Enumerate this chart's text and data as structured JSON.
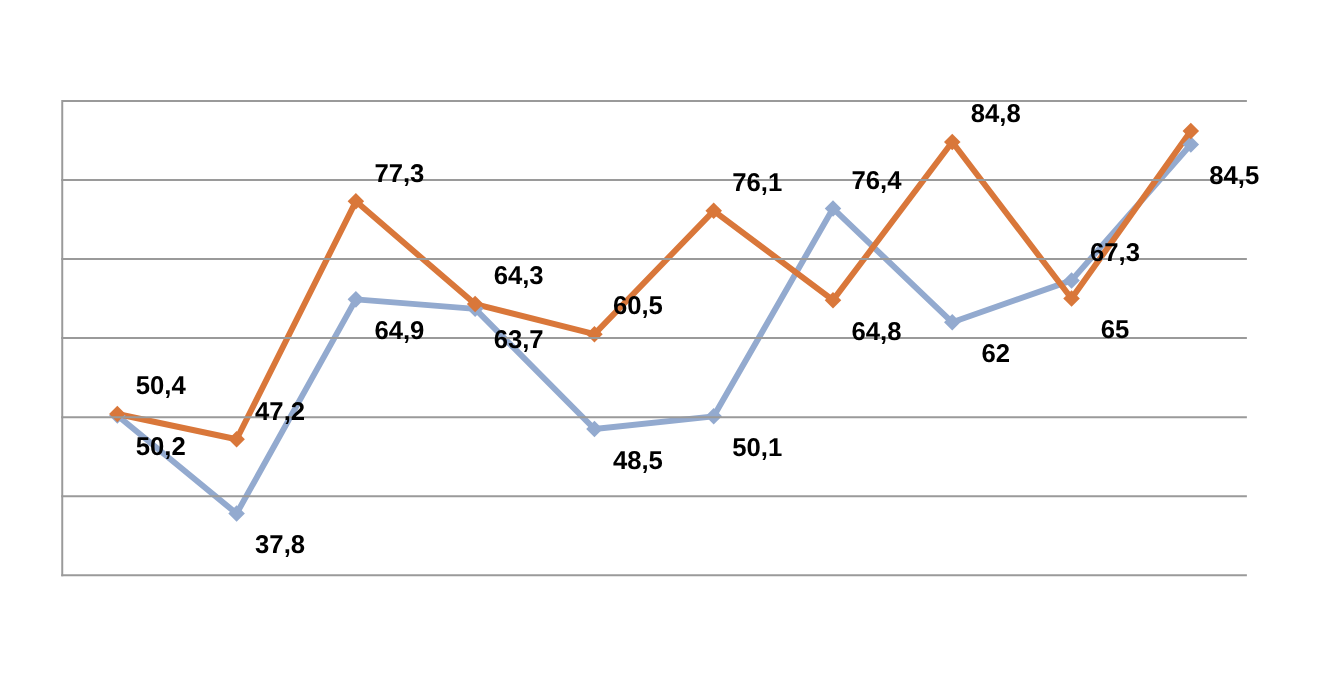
{
  "chart_data": {
    "type": "line",
    "categories": [
      null,
      null,
      null,
      null,
      null,
      null,
      null,
      null,
      null,
      null
    ],
    "series": [
      {
        "color": "#93aacf",
        "values": [
          50.2,
          37.8,
          64.9,
          63.7,
          48.5,
          50.1,
          76.4,
          62,
          67.3,
          84.5
        ],
        "value_labels": [
          "50,2",
          "37,8",
          "64,9",
          "63,7",
          "48,5",
          "50,1",
          "76,4",
          "62",
          "67,3",
          "84,5"
        ]
      },
      {
        "color": "#d9773a",
        "values": [
          50.4,
          47.2,
          77.3,
          64.3,
          60.5,
          76.1,
          64.8,
          84.8,
          65,
          86.2
        ],
        "value_labels": [
          "50,4",
          "47,2",
          "77,3",
          "64,3",
          "60,5",
          "76,1",
          "64,8",
          "84,8",
          "65",
          null
        ]
      }
    ],
    "ylim": [
      30,
      90
    ],
    "yticks": [
      {
        "value": 30,
        "label": null
      },
      {
        "value": 40,
        "label": null
      },
      {
        "value": 50,
        "label": null
      },
      {
        "value": 60,
        "label": null
      },
      {
        "value": 70,
        "label": null
      },
      {
        "value": 80,
        "label": null
      },
      {
        "value": 90,
        "label": null
      }
    ],
    "tick_labels": false,
    "grid": "y",
    "legend": false,
    "marker": "diamond",
    "line_style": "solid"
  }
}
